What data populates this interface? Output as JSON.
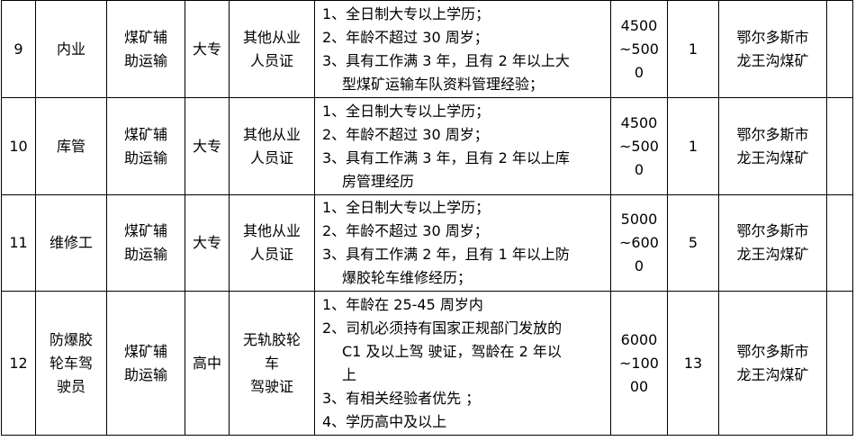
{
  "rows": [
    {
      "no": "9",
      "position": [
        "内业"
      ],
      "category": [
        "煤矿辅",
        "助运输"
      ],
      "education": [
        "大专"
      ],
      "certificate": [
        "其他从业",
        "人员证"
      ],
      "requirements": [
        "1、全日制大专以上学历；",
        "2、年龄不超过 30 周岁；",
        "3、具有工作满 3 年，且有 2 年以上大",
        "型煤矿运输车队资料管理经验；"
      ],
      "salary": [
        "4500",
        "~500",
        "0"
      ],
      "count": "1",
      "location": [
        "鄂尔多斯市",
        "龙王沟煤矿"
      ],
      "extra": ""
    },
    {
      "no": "10",
      "position": [
        "库管"
      ],
      "category": [
        "煤矿辅",
        "助运输"
      ],
      "education": [
        "大专"
      ],
      "certificate": [
        "其他从业",
        "人员证"
      ],
      "requirements": [
        "1、全日制大专以上学历；",
        "2、年龄不超过 30 周岁；",
        "3、具有工作满 3 年，且有 2 年以上库",
        "房管理经历"
      ],
      "salary": [
        "4500",
        "~500",
        "0"
      ],
      "count": "1",
      "location": [
        "鄂尔多斯市",
        "龙王沟煤矿"
      ],
      "extra": ""
    },
    {
      "no": "11",
      "position": [
        "维修工"
      ],
      "category": [
        "煤矿辅",
        "助运输"
      ],
      "education": [
        "大专"
      ],
      "certificate": [
        "其他从业",
        "人员证"
      ],
      "requirements": [
        "1、全日制大专以上学历；",
        "2、年龄不超过 30 周岁；",
        "3、具有工作满 2 年，且有 1 年以上防",
        "爆胶轮车维修经历；"
      ],
      "salary": [
        "5000",
        "~600",
        "0"
      ],
      "count": "5",
      "location": [
        "鄂尔多斯市",
        "龙王沟煤矿"
      ],
      "extra": ""
    },
    {
      "no": "12",
      "position": [
        "防爆胶",
        "轮车驾",
        "驶员"
      ],
      "category": [
        "煤矿辅",
        "助运输"
      ],
      "education": [
        "高中"
      ],
      "certificate": [
        "无轨胶轮",
        "车",
        "驾驶证"
      ],
      "requirements": [
        "1、年龄在 25-45 周岁内",
        "2、司机必须持有国家正规部门发放的",
        "C1 及以上驾 驶证，驾龄在 2 年以",
        "上",
        "3、有相关经验者优先 ；",
        "4、学历高中及以上"
      ],
      "salary": [
        "6000",
        "~100",
        "00"
      ],
      "count": "13",
      "location": [
        "鄂尔多斯市",
        "龙王沟煤矿"
      ],
      "extra": ""
    }
  ]
}
